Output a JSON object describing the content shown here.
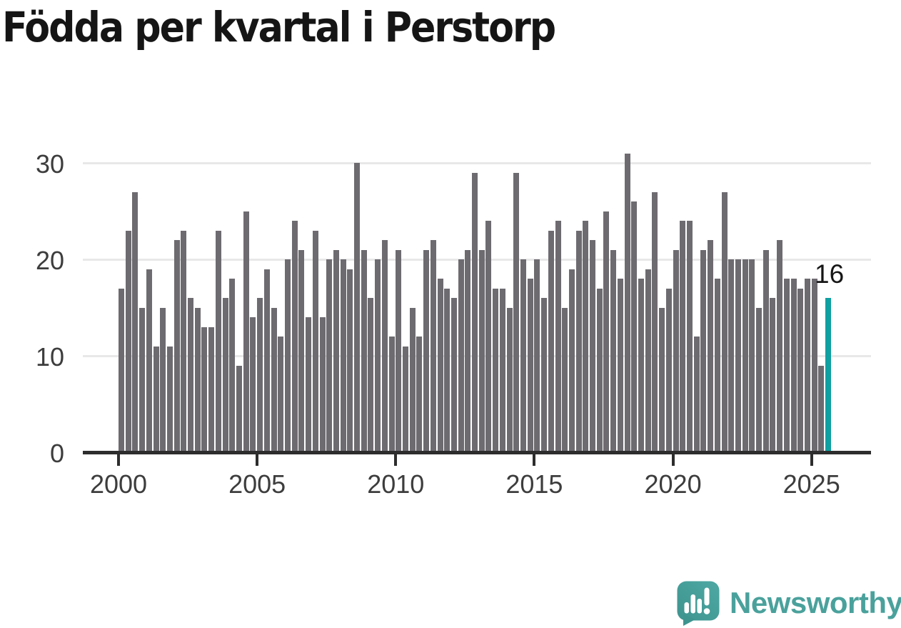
{
  "title": "Födda per kvartal i Perstorp",
  "brand": {
    "name": "Newsworthy"
  },
  "chart_data": {
    "type": "bar",
    "title": "Födda per kvartal i Perstorp",
    "frequency": "quarterly",
    "start_period": "2000 Q1",
    "end_period": "2025 Q3",
    "bar_color": "#6e6b70",
    "highlight_color": "#10a0a1",
    "grid": "horizontal",
    "legend": "none",
    "x_axis": {
      "tick_labels": [
        "2000",
        "2005",
        "2010",
        "2015",
        "2020",
        "2025"
      ],
      "tick_interval_years": 5
    },
    "y_axis": {
      "tick_labels": [
        "0",
        "10",
        "20",
        "30"
      ],
      "ticks": [
        0,
        10,
        20,
        30
      ],
      "range": [
        0,
        32
      ]
    },
    "highlight": {
      "period": "2025 Q3",
      "value": 16,
      "label": "16"
    },
    "series": [
      {
        "year": 2000,
        "values": [
          17,
          23,
          27,
          15
        ]
      },
      {
        "year": 2001,
        "values": [
          19,
          11,
          15,
          11
        ]
      },
      {
        "year": 2002,
        "values": [
          22,
          23,
          16,
          15
        ]
      },
      {
        "year": 2003,
        "values": [
          13,
          13,
          23,
          16
        ]
      },
      {
        "year": 2004,
        "values": [
          18,
          9,
          25,
          14
        ]
      },
      {
        "year": 2005,
        "values": [
          16,
          19,
          15,
          12
        ]
      },
      {
        "year": 2006,
        "values": [
          20,
          24,
          21,
          14
        ]
      },
      {
        "year": 2007,
        "values": [
          23,
          14,
          20,
          21
        ]
      },
      {
        "year": 2008,
        "values": [
          20,
          19,
          30,
          21
        ]
      },
      {
        "year": 2009,
        "values": [
          16,
          20,
          22,
          12
        ]
      },
      {
        "year": 2010,
        "values": [
          21,
          11,
          15,
          12
        ]
      },
      {
        "year": 2011,
        "values": [
          21,
          22,
          18,
          17
        ]
      },
      {
        "year": 2012,
        "values": [
          16,
          20,
          21,
          29
        ]
      },
      {
        "year": 2013,
        "values": [
          21,
          24,
          17,
          17
        ]
      },
      {
        "year": 2014,
        "values": [
          15,
          29,
          20,
          18
        ]
      },
      {
        "year": 2015,
        "values": [
          20,
          16,
          23,
          24
        ]
      },
      {
        "year": 2016,
        "values": [
          15,
          19,
          23,
          24
        ]
      },
      {
        "year": 2017,
        "values": [
          22,
          17,
          25,
          21
        ]
      },
      {
        "year": 2018,
        "values": [
          18,
          31,
          26,
          18
        ]
      },
      {
        "year": 2019,
        "values": [
          19,
          27,
          15,
          17
        ]
      },
      {
        "year": 2020,
        "values": [
          21,
          24,
          24,
          12
        ]
      },
      {
        "year": 2021,
        "values": [
          21,
          22,
          18,
          27
        ]
      },
      {
        "year": 2022,
        "values": [
          20,
          20,
          20,
          20
        ]
      },
      {
        "year": 2023,
        "values": [
          15,
          21,
          16,
          22
        ]
      },
      {
        "year": 2024,
        "values": [
          18,
          18,
          17,
          18
        ]
      },
      {
        "year": 2025,
        "values": [
          18,
          9,
          16
        ]
      }
    ]
  }
}
